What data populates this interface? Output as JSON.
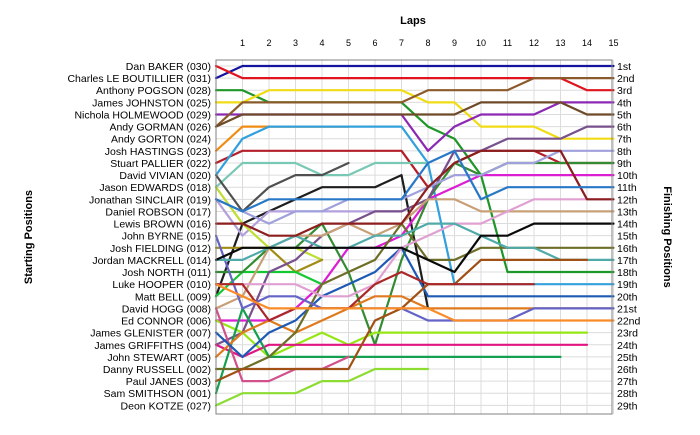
{
  "chart_data": {
    "type": "line",
    "title": "",
    "xlabel": "Laps",
    "ylabel_left": "Starting Positions",
    "ylabel_right": "Finishing Positions",
    "x": [
      0,
      1,
      2,
      3,
      4,
      5,
      6,
      7,
      8,
      9,
      10,
      11,
      12,
      13,
      14,
      15
    ],
    "x_ticks": [
      1,
      2,
      3,
      4,
      5,
      6,
      7,
      8,
      9,
      10,
      11,
      12,
      13,
      14,
      15
    ],
    "y_range": [
      1,
      29
    ],
    "grid": true,
    "starting_labels": [
      "Dan BAKER (030)",
      "Charles LE BOUTILLIER (031)",
      "Anthony POGSON (028)",
      "James JOHNSTON (025)",
      "Nichola HOLMEWOOD (029)",
      "Andy GORMAN (026)",
      "Andy GORTON (024)",
      "Josh HASTINGS (023)",
      "Stuart PALLIER (022)",
      "David VIVIAN (020)",
      "Jason EDWARDS (018)",
      "Jonathan SINCLAIR (019)",
      "Daniel ROBSON (017)",
      "Lewis BROWN (016)",
      "John BYRNE (015)",
      "Josh FIELDING (012)",
      "Jordan MACKRELL (014)",
      "Josh NORTH (011)",
      "Luke HOOPER (010)",
      "Matt BELL (009)",
      "David HOGG (008)",
      "Ed CONNOR (006)",
      "James GLENISTER (007)",
      "James GRIFFITHS (004)",
      "John STEWART (005)",
      "Danny RUSSELL (002)",
      "Paul JANES (003)",
      "Sam SMITHSON (001)",
      "Deon KOTZE (027)"
    ],
    "finishing_labels": [
      "1st",
      "2nd",
      "3rd",
      "4th",
      "5th",
      "6th",
      "7th",
      "8th",
      "9th",
      "10th",
      "11th",
      "12th",
      "13th",
      "14th",
      "15th",
      "16th",
      "17th",
      "18th",
      "19th",
      "20th",
      "21st",
      "22nd",
      "23rd",
      "24th",
      "25th",
      "26th",
      "27th",
      "28th",
      "29th"
    ],
    "series": [
      {
        "color": "#1414a0",
        "values": [
          2,
          1,
          1,
          1,
          1,
          1,
          1,
          1,
          1,
          1,
          1,
          1,
          1,
          1,
          1,
          1
        ]
      },
      {
        "color": "#e0141e",
        "values": [
          1,
          2,
          2,
          2,
          2,
          2,
          2,
          2,
          2,
          2,
          2,
          2,
          2,
          2,
          3,
          3
        ]
      },
      {
        "color": "#1e9628",
        "values": [
          3,
          3,
          4,
          4,
          4,
          4,
          4,
          4,
          6,
          7,
          10,
          18,
          18,
          18,
          18,
          18
        ]
      },
      {
        "color": "#f0dc14",
        "values": [
          4,
          4,
          3,
          3,
          3,
          3,
          3,
          3,
          4,
          4,
          6,
          6,
          6,
          7,
          7,
          7
        ]
      },
      {
        "color": "#8c28b4",
        "values": [
          5,
          5,
          5,
          5,
          5,
          5,
          5,
          5,
          8,
          6,
          5,
          5,
          5,
          4,
          4,
          4
        ]
      },
      {
        "color": "#8b5a2b",
        "values": [
          6,
          4,
          4,
          4,
          4,
          4,
          4,
          4,
          3,
          3,
          3,
          3,
          2,
          2,
          2,
          2
        ]
      },
      {
        "color": "#f08c14",
        "values": [
          8,
          6,
          6,
          6,
          6,
          6,
          null,
          null,
          null,
          null,
          null,
          null,
          null,
          null,
          null,
          null
        ]
      },
      {
        "color": "#b41e28",
        "values": [
          9,
          8,
          8,
          8,
          8,
          8,
          8,
          8,
          11,
          9,
          8,
          8,
          8,
          9,
          9,
          9
        ]
      },
      {
        "color": "#32a0dc",
        "values": [
          10,
          7,
          6,
          6,
          6,
          6,
          6,
          6,
          9,
          19,
          19,
          19,
          19,
          19,
          19,
          19
        ]
      },
      {
        "color": "#78c8b4",
        "values": [
          11,
          9,
          9,
          9,
          10,
          10,
          9,
          9,
          9,
          null,
          null,
          null,
          null,
          null,
          null,
          null
        ]
      },
      {
        "color": "#505050",
        "values": [
          10,
          13,
          11,
          10,
          10,
          9,
          null,
          null,
          null,
          null,
          null,
          null,
          null,
          null,
          null,
          null
        ]
      },
      {
        "color": "#1e1e1e",
        "values": [
          20,
          14,
          13,
          12,
          11,
          11,
          11,
          10,
          21,
          null,
          null,
          null,
          null,
          null,
          null,
          null
        ]
      },
      {
        "color": "#b4a0dc",
        "values": [
          12,
          15,
          13,
          13,
          13,
          13,
          13,
          13,
          null,
          null,
          null,
          null,
          null,
          null,
          null,
          null
        ]
      },
      {
        "color": "#bede32",
        "values": [
          11,
          14,
          16,
          16,
          17,
          null,
          null,
          null,
          null,
          null,
          null,
          null,
          null,
          null,
          null,
          null
        ]
      },
      {
        "color": "#a08c14",
        "values": [
          16,
          16,
          16,
          18,
          17,
          null,
          null,
          null,
          null,
          null,
          null,
          null,
          null,
          null,
          null,
          null
        ]
      },
      {
        "color": "#14c832",
        "values": [
          20,
          18,
          18,
          18,
          19,
          null,
          null,
          null,
          null,
          null,
          null,
          null,
          null,
          null,
          null,
          null
        ]
      },
      {
        "color": "#dc1ed2",
        "values": [
          22,
          22,
          22,
          21,
          19,
          16,
          16,
          15,
          12,
          11,
          10,
          10,
          10,
          10,
          10,
          10
        ]
      },
      {
        "color": "#328c32",
        "values": [
          18,
          18,
          16,
          16,
          14,
          18,
          24,
          17,
          12,
          9,
          10,
          9,
          9,
          9,
          9,
          9
        ]
      },
      {
        "color": "#78508c",
        "values": [
          24,
          23,
          18,
          17,
          15,
          14,
          13,
          13,
          12,
          8,
          8,
          7,
          7,
          7,
          6,
          6
        ]
      },
      {
        "color": "#c8a078",
        "values": [
          21,
          20,
          16,
          15,
          15,
          14,
          15,
          14,
          12,
          12,
          13,
          13,
          13,
          13,
          13,
          13
        ]
      },
      {
        "color": "#96e614",
        "values": [
          22,
          23,
          25,
          24,
          23,
          24,
          23,
          23,
          23,
          23,
          23,
          23,
          23,
          23,
          23,
          null
        ]
      },
      {
        "color": "#e01482",
        "values": [
          24,
          25,
          24,
          24,
          24,
          24,
          24,
          24,
          24,
          24,
          24,
          24,
          24,
          24,
          24,
          null
        ]
      },
      {
        "color": "#14a050",
        "values": [
          28,
          21,
          25,
          25,
          25,
          25,
          25,
          25,
          25,
          25,
          25,
          25,
          25,
          25,
          null,
          null
        ]
      },
      {
        "color": "#d2508c",
        "values": [
          21,
          27,
          27,
          26,
          26,
          25,
          null,
          null,
          null,
          null,
          null,
          null,
          null,
          null,
          null,
          null
        ]
      },
      {
        "color": "#8cdc32",
        "values": [
          29,
          28,
          28,
          28,
          27,
          27,
          26,
          26,
          26,
          null,
          null,
          null,
          null,
          null,
          null,
          null
        ]
      },
      {
        "color": "#e07a1e",
        "values": [
          25,
          23,
          22,
          23,
          22,
          21,
          20,
          20,
          21,
          21,
          21,
          21,
          21,
          21,
          21,
          21
        ]
      },
      {
        "color": "#1e5ab4",
        "values": [
          23,
          25,
          23,
          22,
          20,
          19,
          18,
          16,
          20,
          20,
          20,
          20,
          20,
          20,
          20,
          20
        ]
      },
      {
        "color": "#6e6e28",
        "values": [
          26,
          26,
          25,
          23,
          19,
          18,
          17,
          14,
          17,
          17,
          16,
          16,
          16,
          16,
          16,
          16
        ]
      },
      {
        "color": "#6464c8",
        "values": [
          15,
          21,
          20,
          20,
          21,
          21,
          21,
          21,
          22,
          22,
          22,
          22,
          21,
          21,
          21,
          21
        ]
      },
      {
        "color": "#e0a0d2",
        "values": [
          19,
          19,
          19,
          19,
          20,
          20,
          19,
          16,
          15,
          14,
          14,
          13,
          12,
          12,
          12,
          12
        ]
      },
      {
        "color": "#50aaaa",
        "values": [
          17,
          17,
          16,
          15,
          16,
          16,
          15,
          15,
          14,
          14,
          15,
          16,
          16,
          17,
          17,
          17
        ]
      },
      {
        "color": "#0a0a0a",
        "values": [
          17,
          16,
          16,
          16,
          16,
          16,
          16,
          16,
          17,
          18,
          15,
          15,
          14,
          14,
          14,
          14
        ]
      },
      {
        "color": "#a05014",
        "values": [
          27,
          26,
          26,
          26,
          26,
          26,
          22,
          21,
          19,
          19,
          17,
          17,
          17,
          17,
          17,
          null
        ]
      },
      {
        "color": "#aa2828",
        "values": [
          19,
          19,
          22,
          21,
          21,
          21,
          19,
          18,
          19,
          19,
          19,
          19,
          19,
          null,
          null,
          null
        ]
      },
      {
        "color": "#a0a0dc",
        "values": [
          12,
          13,
          14,
          13,
          13,
          12,
          12,
          12,
          11,
          10,
          10,
          9,
          9,
          8,
          8,
          8
        ]
      },
      {
        "color": "#fa8c28",
        "values": [
          19,
          20,
          21,
          21,
          21,
          21,
          21,
          21,
          21,
          22,
          22,
          22,
          22,
          22,
          22,
          22
        ]
      },
      {
        "color": "#8c1e1e",
        "values": [
          14,
          14,
          15,
          15,
          14,
          14,
          14,
          14,
          11,
          9,
          8,
          8,
          8,
          8,
          12,
          12
        ]
      },
      {
        "color": "#2878c8",
        "values": [
          12,
          13,
          12,
          12,
          12,
          12,
          12,
          12,
          9,
          8,
          12,
          11,
          11,
          11,
          11,
          11
        ]
      },
      {
        "color": "#6e4a28",
        "values": [
          6,
          5,
          5,
          5,
          5,
          5,
          5,
          5,
          5,
          5,
          4,
          4,
          4,
          4,
          5,
          5
        ]
      }
    ]
  }
}
